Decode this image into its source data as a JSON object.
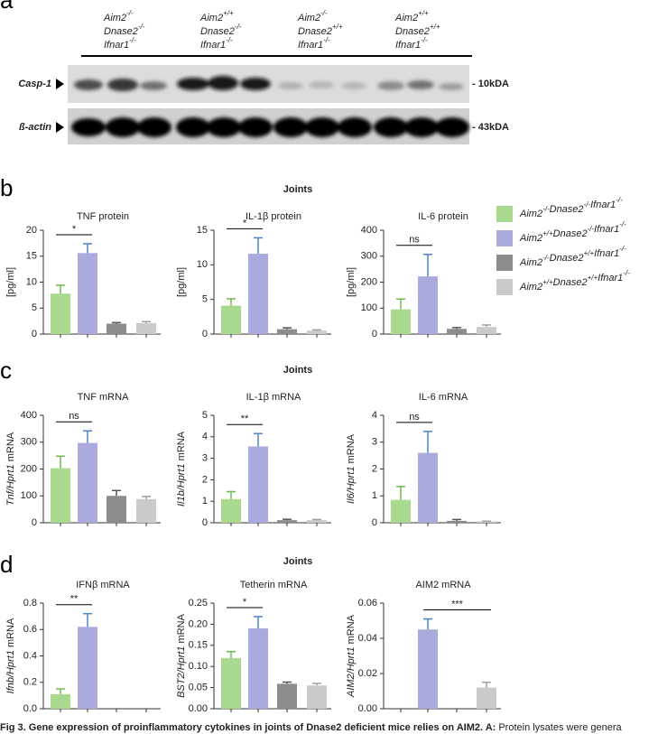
{
  "blot": {
    "letter": "a",
    "groups": [
      {
        "parts": [
          {
            "gene": "Aim2",
            "sup": "-/-"
          },
          {
            "gene": "Dnase2",
            "sup": "-/-"
          },
          {
            "gene": "Ifnar1",
            "sup": "-/-"
          }
        ]
      },
      {
        "parts": [
          {
            "gene": "Aim2",
            "sup": "+/+"
          },
          {
            "gene": "Dnase2",
            "sup": "-/-"
          },
          {
            "gene": "Ifnar1",
            "sup": "-/-"
          }
        ]
      },
      {
        "parts": [
          {
            "gene": "Aim2",
            "sup": "-/-"
          },
          {
            "gene": "Dnase2",
            "sup": "+/+"
          },
          {
            "gene": "Ifnar1",
            "sup": "-/-"
          }
        ]
      },
      {
        "parts": [
          {
            "gene": "Aim2",
            "sup": "+/+"
          },
          {
            "gene": "Dnase2",
            "sup": "+/+"
          },
          {
            "gene": "Ifnar1",
            "sup": "-/-"
          }
        ]
      }
    ],
    "rows": [
      {
        "label": "Casp-1",
        "size": "- 10kDA"
      },
      {
        "label": "ß-actin",
        "size": "- 43kDA"
      }
    ]
  },
  "panels": [
    {
      "letter": "b",
      "heading": "Joints"
    },
    {
      "letter": "c",
      "heading": "Joints"
    },
    {
      "letter": "d",
      "heading": "Joints"
    }
  ],
  "legend": {
    "entries": [
      {
        "color": "#a9d98f",
        "error_color": "#6cbd4a",
        "parts": [
          {
            "gene": "Aim2",
            "sup": "-/-"
          },
          {
            "gene": "Dnase2",
            "sup": "-/-"
          },
          {
            "gene": "Ifnar1",
            "sup": "-/-"
          }
        ]
      },
      {
        "color": "#aaaadc",
        "error_color": "#4d85c9",
        "parts": [
          {
            "gene": "Aim2",
            "sup": "+/+"
          },
          {
            "gene": "Dnase2",
            "sup": "-/-"
          },
          {
            "gene": "Ifnar1",
            "sup": "-/-"
          }
        ]
      },
      {
        "color": "#8c8c8c",
        "error_color": "#555555",
        "parts": [
          {
            "gene": "Aim2",
            "sup": "-/-"
          },
          {
            "gene": "Dnase2",
            "sup": "+/+"
          },
          {
            "gene": "Ifnar1",
            "sup": "-/-"
          }
        ]
      },
      {
        "color": "#cacaca",
        "error_color": "#a0a0a0",
        "parts": [
          {
            "gene": "Aim2",
            "sup": "+/+"
          },
          {
            "gene": "Dnase2",
            "sup": "+/+"
          },
          {
            "gene": "Ifnar1",
            "sup": "-/-"
          }
        ]
      }
    ]
  },
  "chart_data": [
    {
      "type": "bar",
      "title": "TNF protein",
      "ylabel": "[pg/ml]",
      "values": [
        7.8,
        15.6,
        2.0,
        2.1
      ],
      "errors": [
        1.6,
        1.8,
        0.2,
        0.3
      ],
      "ylim": [
        0,
        20
      ],
      "yticks": [
        0,
        5,
        10,
        15,
        20
      ],
      "annotation": "*",
      "annotation_bars": [
        0,
        1
      ]
    },
    {
      "type": "bar",
      "title": "IL-1β protein",
      "ylabel": "[pg/ml]",
      "values": [
        4.1,
        11.6,
        0.7,
        0.5
      ],
      "errors": [
        1.0,
        2.3,
        0.2,
        0.1
      ],
      "ylim": [
        0,
        15
      ],
      "yticks": [
        0,
        5,
        10,
        15
      ],
      "annotation": "*",
      "annotation_bars": [
        0,
        1
      ]
    },
    {
      "type": "bar",
      "title": "IL-6 protein",
      "ylabel": "[pg/ml]",
      "values": [
        95,
        222,
        20,
        27
      ],
      "errors": [
        40,
        85,
        5,
        8
      ],
      "ylim": [
        0,
        400
      ],
      "yticks": [
        0,
        100,
        200,
        300,
        400
      ],
      "annotation": "ns",
      "annotation_bars": [
        0,
        1
      ]
    },
    {
      "type": "bar",
      "title": "TNF mRNA",
      "ylabel_italic": "Tnf/Hprt1",
      "ylabel": "mRNA",
      "values": [
        203,
        297,
        100,
        88
      ],
      "errors": [
        45,
        45,
        20,
        10
      ],
      "ylim": [
        0,
        400
      ],
      "yticks": [
        0,
        100,
        200,
        300,
        400
      ],
      "annotation": "ns",
      "annotation_bars": [
        0,
        1
      ]
    },
    {
      "type": "bar",
      "title": "IL-1β mRNA",
      "ylabel_italic": "Il1b/Hprt1",
      "ylabel": "mRNA",
      "values": [
        1.1,
        3.55,
        0.12,
        0.12
      ],
      "errors": [
        0.35,
        0.6,
        0.04,
        0.03
      ],
      "ylim": [
        0,
        5
      ],
      "yticks": [
        0,
        1,
        2,
        3,
        4,
        5
      ],
      "annotation": "**",
      "annotation_bars": [
        0,
        1
      ]
    },
    {
      "type": "bar",
      "title": "IL-6 mRNA",
      "ylabel_italic": "Il6/Hprt1",
      "ylabel": "mRNA",
      "values": [
        0.85,
        2.6,
        0.07,
        0.05
      ],
      "errors": [
        0.5,
        0.8,
        0.05,
        0.01
      ],
      "ylim": [
        0,
        4
      ],
      "yticks": [
        0,
        1,
        2,
        3,
        4
      ],
      "annotation": "ns",
      "annotation_bars": [
        0,
        1
      ]
    },
    {
      "type": "bar",
      "title": "IFNβ mRNA",
      "ylabel_italic": "Ifnb/Hprt1",
      "ylabel": "mRNA",
      "values": [
        0.11,
        0.62,
        0,
        0
      ],
      "errors": [
        0.04,
        0.1,
        null,
        null
      ],
      "ylim": [
        0,
        0.8
      ],
      "yticks": [
        {
          "value": 0,
          "label": "0.0"
        },
        0.2,
        0.4,
        0.6,
        0.8
      ],
      "annotation": "**",
      "annotation_bars": [
        0,
        1
      ]
    },
    {
      "type": "bar",
      "title": "Tetherin mRNA",
      "ylabel_italic": "BST2/Hprt1",
      "ylabel": "mRNA",
      "values": [
        0.12,
        0.19,
        0.059,
        0.055
      ],
      "errors": [
        0.015,
        0.028,
        0.004,
        0.005
      ],
      "ylim": [
        0,
        0.25
      ],
      "yticks": [
        {
          "value": 0,
          "label": "0.00"
        },
        0.05,
        {
          "value": 0.1,
          "label": "0.10"
        },
        0.15,
        {
          "value": 0.2,
          "label": "0.20"
        },
        0.25
      ],
      "annotation": "*",
      "annotation_bars": [
        0,
        1
      ]
    },
    {
      "type": "bar",
      "title": "AIM2 mRNA",
      "ylabel_italic": "AIM2/Hprt1",
      "ylabel": "mRNA",
      "values": [
        0,
        0.045,
        0,
        0.012
      ],
      "errors": [
        null,
        0.006,
        null,
        0.003
      ],
      "ylim": [
        0,
        0.06
      ],
      "yticks": [
        {
          "value": 0,
          "label": "0.00"
        },
        0.02,
        0.04,
        0.06
      ],
      "annotation": "***",
      "annotation_bars": [
        1,
        3
      ]
    }
  ],
  "caption": {
    "bold": "Fig 3. Gene expression of proinflammatory cytokines in joints of Dnase2 deficient mice relies on AIM2. A:",
    "text": "Protein lysates were genera"
  }
}
